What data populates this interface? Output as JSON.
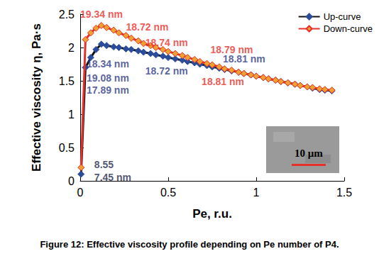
{
  "chart_data": {
    "type": "line",
    "caption": "Figure 12: Effective viscosity profile depending on Pe number of P4.",
    "x_label": "Pe, r.u.",
    "y_label": "Effective viscosity η, Pa·s",
    "x": [
      0.005,
      0.03,
      0.06,
      0.09,
      0.12,
      0.15,
      0.19,
      0.22,
      0.26,
      0.29,
      0.33,
      0.36,
      0.4,
      0.43,
      0.47,
      0.5,
      0.54,
      0.58,
      0.61,
      0.65,
      0.68,
      0.72,
      0.75,
      0.79,
      0.82,
      0.86,
      0.9,
      0.93,
      0.97,
      1.0,
      1.04,
      1.07,
      1.11,
      1.14,
      1.18,
      1.22,
      1.25,
      1.29,
      1.32,
      1.36,
      1.39,
      1.43
    ],
    "series": [
      {
        "name": "Up-curve",
        "color": "#111111",
        "marker": "diamond",
        "values": [
          0.1,
          1.7,
          1.85,
          1.97,
          2.05,
          2.03,
          2.01,
          2.0,
          1.98,
          1.97,
          1.95,
          1.93,
          1.91,
          1.89,
          1.87,
          1.85,
          1.83,
          1.81,
          1.79,
          1.77,
          1.75,
          1.73,
          1.71,
          1.69,
          1.67,
          1.65,
          1.63,
          1.61,
          1.59,
          1.57,
          1.55,
          1.53,
          1.51,
          1.49,
          1.47,
          1.45,
          1.43,
          1.41,
          1.39,
          1.37,
          1.36,
          1.35
        ]
      },
      {
        "name": "Down-curve",
        "color": "#e8302a",
        "marker": "diamond",
        "values": [
          0.2,
          2.12,
          2.22,
          2.29,
          2.33,
          2.3,
          2.26,
          2.22,
          2.18,
          2.14,
          2.1,
          2.06,
          2.03,
          2.0,
          1.97,
          1.94,
          1.91,
          1.88,
          1.85,
          1.82,
          1.79,
          1.76,
          1.74,
          1.71,
          1.68,
          1.66,
          1.63,
          1.61,
          1.59,
          1.57,
          1.55,
          1.53,
          1.51,
          1.49,
          1.47,
          1.45,
          1.43,
          1.41,
          1.4,
          1.38,
          1.37,
          1.36
        ]
      }
    ],
    "xlim": [
      0,
      1.5
    ],
    "xticks": [
      0,
      0.5,
      1,
      1.5
    ],
    "ylim": [
      0,
      2.5
    ],
    "yticks": [
      0,
      0.5,
      1,
      1.5,
      2,
      2.5
    ],
    "grid": false,
    "legend": "upper right",
    "annotations": [
      {
        "text": "19.34 nm",
        "x": 0.0,
        "y": 2.5,
        "color": "#e8302a"
      },
      {
        "text": "18.72 nm",
        "x": 0.26,
        "y": 2.31,
        "color": "#e8302a"
      },
      {
        "text": "18.74 nm",
        "x": 0.37,
        "y": 2.07,
        "color": "#e8302a"
      },
      {
        "text": "18.79 nm",
        "x": 0.74,
        "y": 1.97,
        "color": "#e8302a"
      },
      {
        "text": "18.81 nm",
        "x": 0.81,
        "y": 1.83,
        "color": "#2e3a87"
      },
      {
        "text": "18.34 nm",
        "x": 0.036,
        "y": 1.76,
        "color": "#2e3a87"
      },
      {
        "text": "18.72 nm",
        "x": 0.37,
        "y": 1.65,
        "color": "#2e3a87"
      },
      {
        "text": "18.81 nm",
        "x": 0.69,
        "y": 1.49,
        "color": "#e8302a"
      },
      {
        "text": "19.08 nm",
        "x": 0.036,
        "y": 1.54,
        "color": "#2e3a87"
      },
      {
        "text": "17.89 nm",
        "x": 0.036,
        "y": 1.36,
        "color": "#2e3a87"
      },
      {
        "text": "8.55",
        "x": 0.08,
        "y": 0.24,
        "color": "#1f2a4a"
      },
      {
        "text": "7.45 nm",
        "x": 0.08,
        "y": 0.05,
        "color": "#1f2a4a"
      }
    ],
    "inset": {
      "scale_bar_label": "10 μm"
    }
  }
}
